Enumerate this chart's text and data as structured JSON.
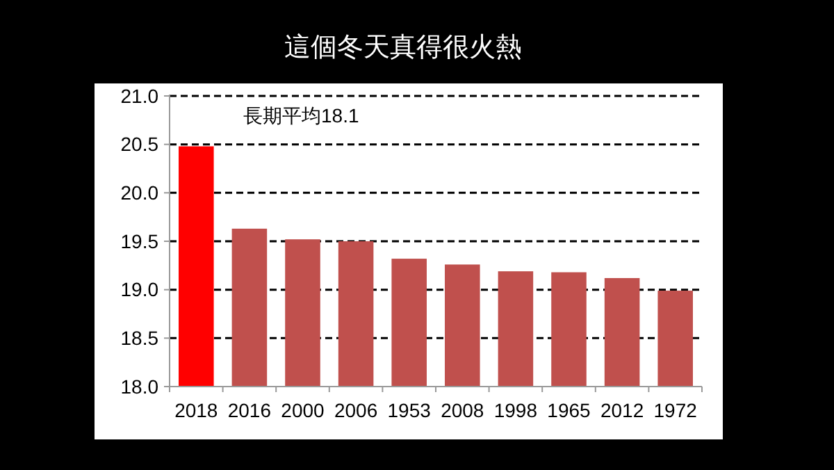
{
  "chart_data": {
    "type": "bar",
    "title": "這個冬天真得很火熱",
    "categories": [
      "2018",
      "2016",
      "2000",
      "2006",
      "1953",
      "2008",
      "1998",
      "1965",
      "2012",
      "1972"
    ],
    "values": [
      20.48,
      19.63,
      19.52,
      19.5,
      19.32,
      19.26,
      19.19,
      19.18,
      19.12,
      18.99
    ],
    "colors": [
      "#ff0000",
      "#c0504d",
      "#c0504d",
      "#c0504d",
      "#c0504d",
      "#c0504d",
      "#c0504d",
      "#c0504d",
      "#c0504d",
      "#c0504d"
    ],
    "ylim": [
      18,
      21
    ],
    "yticks": [
      {
        "value": 18,
        "label": "18.0"
      },
      {
        "value": 18.5,
        "label": "18.5"
      },
      {
        "value": 19,
        "label": "19.0"
      },
      {
        "value": 19.5,
        "label": "19.5"
      },
      {
        "value": 20,
        "label": "20.0"
      },
      {
        "value": 20.5,
        "label": "20.5"
      },
      {
        "value": 21,
        "label": "21.0"
      }
    ],
    "grid": "y",
    "annotations": [
      "長期平均18.1"
    ]
  }
}
